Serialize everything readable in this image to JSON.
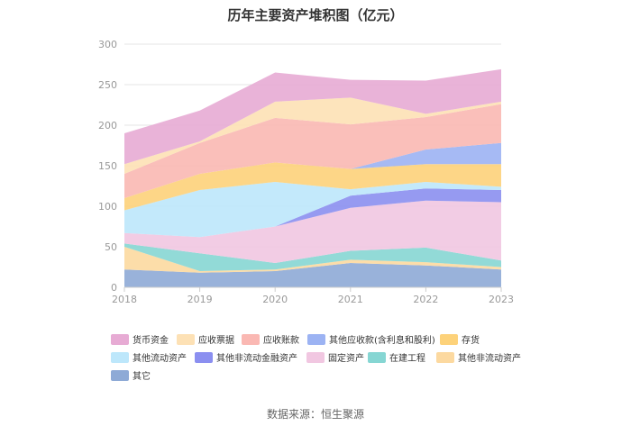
{
  "chart_data": {
    "type": "area",
    "stacked": true,
    "title": "历年主要资产堆积图（亿元）",
    "source": "数据来源：恒生聚源",
    "x": [
      "2018",
      "2019",
      "2020",
      "2021",
      "2022",
      "2023"
    ],
    "ylim": [
      0,
      300
    ],
    "yticks": [
      0,
      50,
      100,
      150,
      200,
      250,
      300
    ],
    "grid": true,
    "legend_position": "bottom",
    "series": [
      {
        "name": "其它",
        "color": "#8eaad6",
        "values": [
          22,
          18,
          20,
          30,
          27,
          22
        ]
      },
      {
        "name": "其他非流动资产",
        "color": "#fcd9a0",
        "values": [
          28,
          2,
          2,
          4,
          4,
          3
        ]
      },
      {
        "name": "在建工程",
        "color": "#86d6d3",
        "values": [
          4,
          22,
          8,
          11,
          18,
          8
        ]
      },
      {
        "name": "固定资产",
        "color": "#f1c7e1",
        "values": [
          13,
          20,
          45,
          53,
          58,
          72
        ]
      },
      {
        "name": "其他非流动金融资产",
        "color": "#8b8ff0",
        "values": [
          0,
          0,
          0,
          15,
          15,
          15
        ]
      },
      {
        "name": "其他流动资产",
        "color": "#bde7fb",
        "values": [
          28,
          58,
          55,
          8,
          8,
          4
        ]
      },
      {
        "name": "存货",
        "color": "#fdd27a",
        "values": [
          15,
          20,
          24,
          25,
          22,
          28
        ]
      },
      {
        "name": "其他应收款(含利息和股利)",
        "color": "#9cb3f3",
        "values": [
          0,
          0,
          0,
          0,
          18,
          26
        ]
      },
      {
        "name": "应收账款",
        "color": "#fab8b3",
        "values": [
          30,
          38,
          55,
          55,
          40,
          48
        ]
      },
      {
        "name": "应收票据",
        "color": "#fde1b5",
        "values": [
          12,
          2,
          20,
          33,
          4,
          3
        ]
      },
      {
        "name": "货币资金",
        "color": "#e7abd4",
        "values": [
          38,
          38,
          36,
          22,
          41,
          40
        ]
      }
    ],
    "legend_order": [
      "货币资金",
      "应收票据",
      "应收账款",
      "其他应收款(含利息和股利)",
      "存货",
      "其他流动资产",
      "其他非流动金融资产",
      "固定资产",
      "在建工程",
      "其他非流动资产",
      "其它"
    ]
  }
}
